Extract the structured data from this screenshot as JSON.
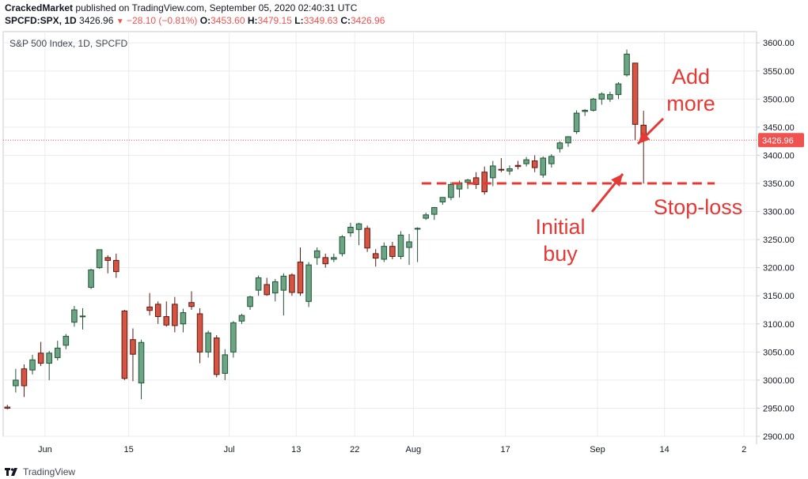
{
  "header": {
    "author": "CrackedMarket",
    "published_text": "published on TradingView.com, September 05, 2020 02:40:31 UTC",
    "symbol": "SPCFD:SPX, 1D",
    "last": "3426.96",
    "change": "−28.10 (−0.81%)",
    "o_label": "O:",
    "o": "3453.60",
    "h_label": "H:",
    "h": "3479.15",
    "l_label": "L:",
    "l": "3349.63",
    "c_label": "C:",
    "c": "3426.96"
  },
  "footer": {
    "brand": "TradingView"
  },
  "colors": {
    "up": "#6ba583",
    "down": "#d75442",
    "up_border": "#225437",
    "down_border": "#5b1a13",
    "annotation": "#e53935",
    "grid": "#e9ebf0"
  },
  "chart_data": {
    "type": "candlestick",
    "title": "S&P 500 Index, 1D, SPCFD",
    "ylim": [
      2900,
      3620
    ],
    "y_ticks": [
      2900,
      2950,
      3000,
      3050,
      3100,
      3150,
      3200,
      3250,
      3300,
      3350,
      3400,
      3450,
      3500,
      3550,
      3600
    ],
    "y_tick_labels": [
      "2900.00",
      "2950.00",
      "3000.00",
      "3050.00",
      "3100.00",
      "3150.00",
      "3200.00",
      "3250.00",
      "3300.00",
      "3350.00",
      "3400.00",
      "3450.00",
      "3500.00",
      "3550.00",
      "3600.00"
    ],
    "x_tick_labels": [
      "Jun",
      "15",
      "Jul",
      "13",
      "22",
      "Aug",
      "17",
      "Sep",
      "14",
      "2"
    ],
    "x_tick_index": [
      4.5,
      14.5,
      26.5,
      34.5,
      41.5,
      48.5,
      59.5,
      70.5,
      78.5,
      88.0
    ],
    "x_range": [
      -0.5,
      89.5
    ],
    "last_price": 3426.96,
    "last_price_label": "3426.96",
    "candles": [
      {
        "o": 2952,
        "h": 2956,
        "l": 2948,
        "c": 2950
      },
      {
        "o": 2990,
        "h": 3020,
        "l": 2978,
        "c": 3000
      },
      {
        "o": 3020,
        "h": 3028,
        "l": 2970,
        "c": 2990
      },
      {
        "o": 3018,
        "h": 3045,
        "l": 3010,
        "c": 3036
      },
      {
        "o": 3048,
        "h": 3068,
        "l": 3025,
        "c": 3030
      },
      {
        "o": 3030,
        "h": 3052,
        "l": 3000,
        "c": 3048
      },
      {
        "o": 3040,
        "h": 3070,
        "l": 3035,
        "c": 3057
      },
      {
        "o": 3062,
        "h": 3082,
        "l": 3055,
        "c": 3078
      },
      {
        "o": 3103,
        "h": 3132,
        "l": 3095,
        "c": 3125
      },
      {
        "o": 3113,
        "h": 3128,
        "l": 3090,
        "c": 3114
      },
      {
        "o": 3165,
        "h": 3198,
        "l": 3162,
        "c": 3196
      },
      {
        "o": 3200,
        "h": 3232,
        "l": 3198,
        "c": 3232
      },
      {
        "o": 3218,
        "h": 3222,
        "l": 3190,
        "c": 3213
      },
      {
        "o": 3213,
        "h": 3225,
        "l": 3182,
        "c": 3193
      },
      {
        "o": 3123,
        "h": 3125,
        "l": 3000,
        "c": 3003
      },
      {
        "o": 3072,
        "h": 3092,
        "l": 2998,
        "c": 3046
      },
      {
        "o": 2995,
        "h": 3072,
        "l": 2966,
        "c": 3067
      },
      {
        "o": 3130,
        "h": 3155,
        "l": 3115,
        "c": 3124
      },
      {
        "o": 3135,
        "h": 3140,
        "l": 3100,
        "c": 3113
      },
      {
        "o": 3113,
        "h": 3140,
        "l": 3095,
        "c": 3098
      },
      {
        "o": 3135,
        "h": 3148,
        "l": 3085,
        "c": 3097
      },
      {
        "o": 3100,
        "h": 3127,
        "l": 3085,
        "c": 3120
      },
      {
        "o": 3138,
        "h": 3158,
        "l": 3125,
        "c": 3131
      },
      {
        "o": 3118,
        "h": 3128,
        "l": 3030,
        "c": 3050
      },
      {
        "o": 3050,
        "h": 3088,
        "l": 3040,
        "c": 3084
      },
      {
        "o": 3075,
        "h": 3080,
        "l": 3005,
        "c": 3010
      },
      {
        "o": 3012,
        "h": 3055,
        "l": 3000,
        "c": 3045
      },
      {
        "o": 3050,
        "h": 3105,
        "l": 3040,
        "c": 3102
      },
      {
        "o": 3105,
        "h": 3118,
        "l": 3100,
        "c": 3115
      },
      {
        "o": 3131,
        "h": 3150,
        "l": 3125,
        "c": 3148
      },
      {
        "o": 3160,
        "h": 3186,
        "l": 3150,
        "c": 3182
      },
      {
        "o": 3170,
        "h": 3182,
        "l": 3150,
        "c": 3152
      },
      {
        "o": 3155,
        "h": 3180,
        "l": 3140,
        "c": 3175
      },
      {
        "o": 3160,
        "h": 3190,
        "l": 3115,
        "c": 3185
      },
      {
        "o": 3187,
        "h": 3190,
        "l": 3150,
        "c": 3156
      },
      {
        "o": 3210,
        "h": 3236,
        "l": 3150,
        "c": 3155
      },
      {
        "o": 3140,
        "h": 3210,
        "l": 3130,
        "c": 3205
      },
      {
        "o": 3218,
        "h": 3236,
        "l": 3205,
        "c": 3230
      },
      {
        "o": 3218,
        "h": 3225,
        "l": 3200,
        "c": 3207
      },
      {
        "o": 3215,
        "h": 3225,
        "l": 3210,
        "c": 3218
      },
      {
        "o": 3225,
        "h": 3258,
        "l": 3220,
        "c": 3255
      },
      {
        "o": 3262,
        "h": 3280,
        "l": 3255,
        "c": 3272
      },
      {
        "o": 3268,
        "h": 3280,
        "l": 3240,
        "c": 3278
      },
      {
        "o": 3270,
        "h": 3275,
        "l": 3228,
        "c": 3235
      },
      {
        "o": 3225,
        "h": 3233,
        "l": 3202,
        "c": 3217
      },
      {
        "o": 3215,
        "h": 3245,
        "l": 3210,
        "c": 3238
      },
      {
        "o": 3238,
        "h": 3246,
        "l": 3215,
        "c": 3220
      },
      {
        "o": 3220,
        "h": 3265,
        "l": 3215,
        "c": 3258
      },
      {
        "o": 3236,
        "h": 3260,
        "l": 3205,
        "c": 3246
      },
      {
        "o": 3270,
        "h": 3272,
        "l": 3210,
        "c": 3270
      },
      {
        "o": 3288,
        "h": 3298,
        "l": 3285,
        "c": 3294
      },
      {
        "o": 3295,
        "h": 3308,
        "l": 3285,
        "c": 3307
      },
      {
        "o": 3317,
        "h": 3325,
        "l": 3312,
        "c": 3325
      },
      {
        "o": 3325,
        "h": 3352,
        "l": 3320,
        "c": 3348
      },
      {
        "o": 3340,
        "h": 3355,
        "l": 3325,
        "c": 3351
      },
      {
        "o": 3352,
        "h": 3358,
        "l": 3340,
        "c": 3356
      },
      {
        "o": 3360,
        "h": 3370,
        "l": 3340,
        "c": 3348
      },
      {
        "o": 3370,
        "h": 3380,
        "l": 3330,
        "c": 3335
      },
      {
        "o": 3360,
        "h": 3390,
        "l": 3345,
        "c": 3381
      },
      {
        "o": 3375,
        "h": 3395,
        "l": 3370,
        "c": 3374
      },
      {
        "o": 3372,
        "h": 3382,
        "l": 3365,
        "c": 3376
      },
      {
        "o": 3382,
        "h": 3390,
        "l": 3375,
        "c": 3380
      },
      {
        "o": 3385,
        "h": 3397,
        "l": 3380,
        "c": 3392
      },
      {
        "o": 3390,
        "h": 3400,
        "l": 3370,
        "c": 3378
      },
      {
        "o": 3365,
        "h": 3398,
        "l": 3360,
        "c": 3395
      },
      {
        "o": 3385,
        "h": 3402,
        "l": 3378,
        "c": 3398
      },
      {
        "o": 3412,
        "h": 3425,
        "l": 3405,
        "c": 3422
      },
      {
        "o": 3422,
        "h": 3434,
        "l": 3415,
        "c": 3433
      },
      {
        "o": 3442,
        "h": 3480,
        "l": 3438,
        "c": 3475
      },
      {
        "o": 3478,
        "h": 3482,
        "l": 3470,
        "c": 3480
      },
      {
        "o": 3480,
        "h": 3502,
        "l": 3478,
        "c": 3500
      },
      {
        "o": 3500,
        "h": 3512,
        "l": 3490,
        "c": 3509
      },
      {
        "o": 3500,
        "h": 3513,
        "l": 3495,
        "c": 3508
      },
      {
        "o": 3508,
        "h": 3530,
        "l": 3500,
        "c": 3527
      },
      {
        "o": 3543,
        "h": 3588,
        "l": 3540,
        "c": 3580
      },
      {
        "o": 3564,
        "h": 3564,
        "l": 3427,
        "c": 3455
      },
      {
        "o": 3453.6,
        "h": 3479.15,
        "l": 3349.63,
        "c": 3426.96
      }
    ],
    "candle_slots": [
      0,
      1,
      2,
      3,
      4,
      5,
      6,
      7,
      8,
      9,
      10,
      11,
      12,
      13,
      14,
      15,
      16,
      17,
      18,
      19,
      20,
      21,
      22,
      23,
      24,
      25,
      26,
      27,
      28,
      29,
      30,
      31,
      32,
      33,
      34,
      35,
      36,
      37,
      38,
      39,
      40,
      41,
      42,
      43,
      44,
      45,
      46,
      47,
      48,
      49,
      50,
      51,
      52,
      53,
      54,
      55,
      56,
      57,
      58,
      59,
      60,
      61,
      62,
      63,
      64,
      65,
      66,
      67,
      68,
      69,
      70,
      71,
      72,
      73,
      74,
      75,
      76
    ],
    "lines": [
      {
        "type": "horizontal-dashed",
        "value": 3350,
        "x_from": 49.5,
        "x_to": 84.5
      }
    ],
    "annotations": [
      {
        "name": "add-more",
        "lines": [
          "Add",
          "more"
        ]
      },
      {
        "name": "stop-loss",
        "lines": [
          "Stop-loss"
        ]
      },
      {
        "name": "initial-buy",
        "lines": [
          "Initial",
          "buy"
        ]
      }
    ]
  }
}
